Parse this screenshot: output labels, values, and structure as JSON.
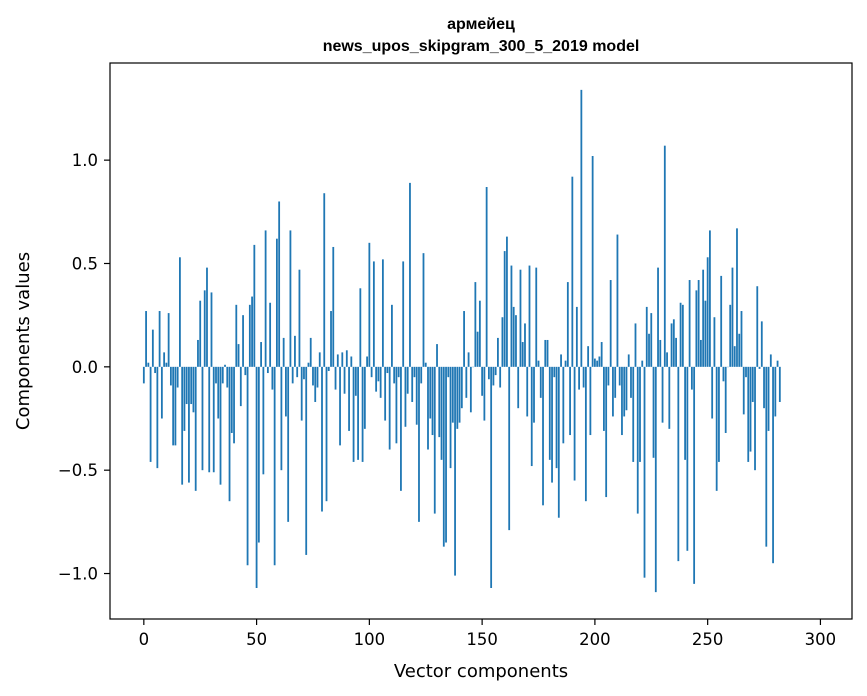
{
  "chart_data": {
    "type": "bar",
    "title": "армейец",
    "subtitle": "news_upos_skipgram_300_5_2019 model",
    "xlabel": "Vector components",
    "ylabel": "Components values",
    "xlim": [
      -15,
      314
    ],
    "ylim": [
      -1.22,
      1.47
    ],
    "xticks": [
      0,
      50,
      100,
      150,
      200,
      250,
      300
    ],
    "xtick_labels": [
      "0",
      "50",
      "100",
      "150",
      "200",
      "250",
      "300"
    ],
    "yticks": [
      -1.0,
      -0.5,
      0.0,
      0.5,
      1.0
    ],
    "ytick_labels": [
      "−1.0",
      "−0.5",
      "0.0",
      "0.5",
      "1.0"
    ],
    "grid": false,
    "bar_color": "#1f77b4",
    "x_start": 0,
    "values": [
      -0.08,
      0.27,
      0.02,
      -0.46,
      0.18,
      -0.03,
      -0.49,
      0.27,
      -0.25,
      0.07,
      0.02,
      0.26,
      -0.09,
      -0.38,
      -0.38,
      -0.1,
      0.53,
      -0.57,
      -0.31,
      -0.18,
      -0.56,
      -0.18,
      -0.22,
      -0.6,
      0.13,
      0.32,
      -0.5,
      0.37,
      0.48,
      -0.51,
      0.36,
      -0.51,
      -0.08,
      -0.25,
      -0.57,
      -0.08,
      0.01,
      -0.1,
      -0.65,
      -0.32,
      -0.37,
      0.3,
      0.11,
      -0.19,
      0.25,
      -0.04,
      -0.96,
      0.3,
      0.34,
      0.59,
      -1.07,
      -0.85,
      0.12,
      -0.52,
      0.66,
      -0.03,
      0.31,
      -0.11,
      -0.96,
      0.62,
      0.8,
      -0.5,
      0.14,
      -0.24,
      -0.75,
      0.66,
      -0.08,
      0.15,
      -0.05,
      0.47,
      -0.26,
      -0.06,
      -0.91,
      0.02,
      0.14,
      -0.09,
      -0.17,
      -0.1,
      0.07,
      -0.7,
      0.84,
      -0.65,
      -0.02,
      0.27,
      0.58,
      -0.11,
      0.06,
      -0.38,
      0.07,
      -0.13,
      0.08,
      -0.31,
      0.05,
      -0.46,
      -0.14,
      -0.45,
      0.38,
      -0.46,
      -0.3,
      0.05,
      0.6,
      -0.05,
      0.51,
      -0.12,
      -0.07,
      -0.15,
      0.52,
      -0.26,
      -0.03,
      -0.4,
      0.3,
      -0.08,
      -0.37,
      -0.05,
      -0.6,
      0.51,
      -0.29,
      -0.13,
      0.89,
      -0.17,
      -0.05,
      -0.28,
      -0.75,
      -0.08,
      0.55,
      0.02,
      -0.4,
      -0.25,
      -0.33,
      -0.71,
      0.11,
      -0.34,
      -0.45,
      -0.87,
      -0.85,
      -0.05,
      -0.49,
      -0.27,
      -1.01,
      -0.3,
      -0.27,
      -0.2,
      0.27,
      -0.15,
      0.07,
      -0.22,
      0.0,
      0.41,
      0.17,
      0.32,
      -0.14,
      -0.26,
      0.87,
      -0.06,
      -1.07,
      -0.09,
      -0.04,
      0.14,
      -0.1,
      0.24,
      0.56,
      0.63,
      -0.79,
      0.49,
      0.29,
      0.25,
      -0.2,
      0.47,
      0.12,
      0.21,
      -0.24,
      0.49,
      -0.48,
      -0.27,
      0.48,
      0.03,
      -0.15,
      -0.67,
      0.13,
      0.13,
      -0.45,
      -0.56,
      -0.05,
      -0.49,
      -0.73,
      0.06,
      -0.37,
      0.03,
      0.41,
      -0.33,
      0.92,
      -0.55,
      0.29,
      -0.11,
      1.34,
      -0.1,
      -0.65,
      0.1,
      -0.33,
      1.02,
      0.04,
      0.03,
      0.05,
      0.12,
      -0.31,
      -0.63,
      -0.09,
      0.42,
      -0.24,
      -0.15,
      0.64,
      -0.09,
      -0.33,
      -0.24,
      -0.21,
      0.06,
      -0.15,
      -0.46,
      0.21,
      -0.71,
      -0.46,
      0.03,
      -1.02,
      0.29,
      0.16,
      0.26,
      -0.44,
      -1.09,
      0.48,
      0.13,
      -0.27,
      1.07,
      0.07,
      -0.3,
      0.21,
      0.23,
      0.14,
      -0.94,
      0.31,
      0.3,
      -0.45,
      -0.89,
      0.42,
      -0.11,
      -1.05,
      0.37,
      0.42,
      0.13,
      0.47,
      0.32,
      0.53,
      0.66,
      -0.25,
      0.24,
      -0.6,
      -0.46,
      0.44,
      -0.07,
      -0.32,
      0.0,
      0.3,
      0.48,
      0.1,
      0.67,
      0.16,
      0.27,
      -0.23,
      -0.05,
      -0.46,
      -0.41,
      -0.17,
      -0.5,
      0.39,
      -0.01,
      0.22,
      -0.2,
      -0.87,
      -0.31,
      0.06,
      -0.95,
      -0.24,
      0.03,
      -0.17
    ]
  }
}
